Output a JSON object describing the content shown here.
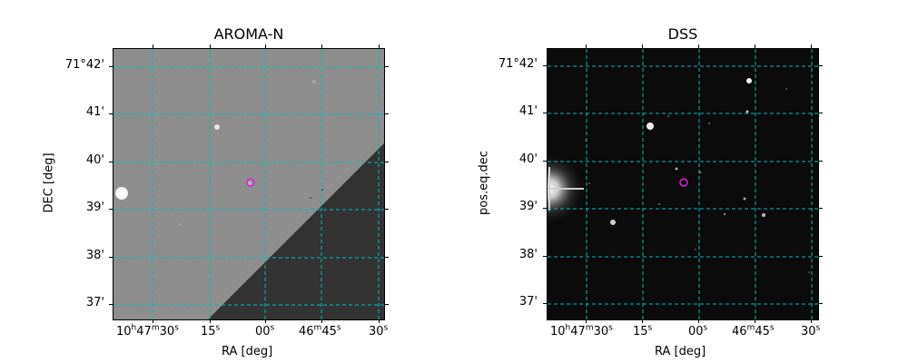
{
  "panels": {
    "left": {
      "title": "AROMA-N",
      "xlabel": "RA [deg]",
      "ylabel": "DEC [deg]"
    },
    "right": {
      "title": "DSS",
      "xlabel": "RA [deg]",
      "ylabel": "pos.eq.dec"
    }
  },
  "dec_ticks": [
    "71°42'",
    "41'",
    "40'",
    "39'",
    "38'",
    "37'"
  ],
  "ra_ticks": [
    {
      "h": "10",
      "hu": "h",
      "m": "47",
      "mu": "m",
      "s": "30",
      "su": "s"
    },
    {
      "s": "15",
      "su": "s"
    },
    {
      "s": "00",
      "su": "s"
    },
    {
      "m": "46",
      "mu": "m",
      "s": "45",
      "su": "s"
    },
    {
      "s": "30",
      "su": "s"
    }
  ],
  "colors": {
    "grid": "#00bcbc",
    "marker": "#e020e0",
    "aroma_light": "#8e8e8e",
    "aroma_dark": "#333333",
    "dss_bg": "#0b0b0b"
  }
}
